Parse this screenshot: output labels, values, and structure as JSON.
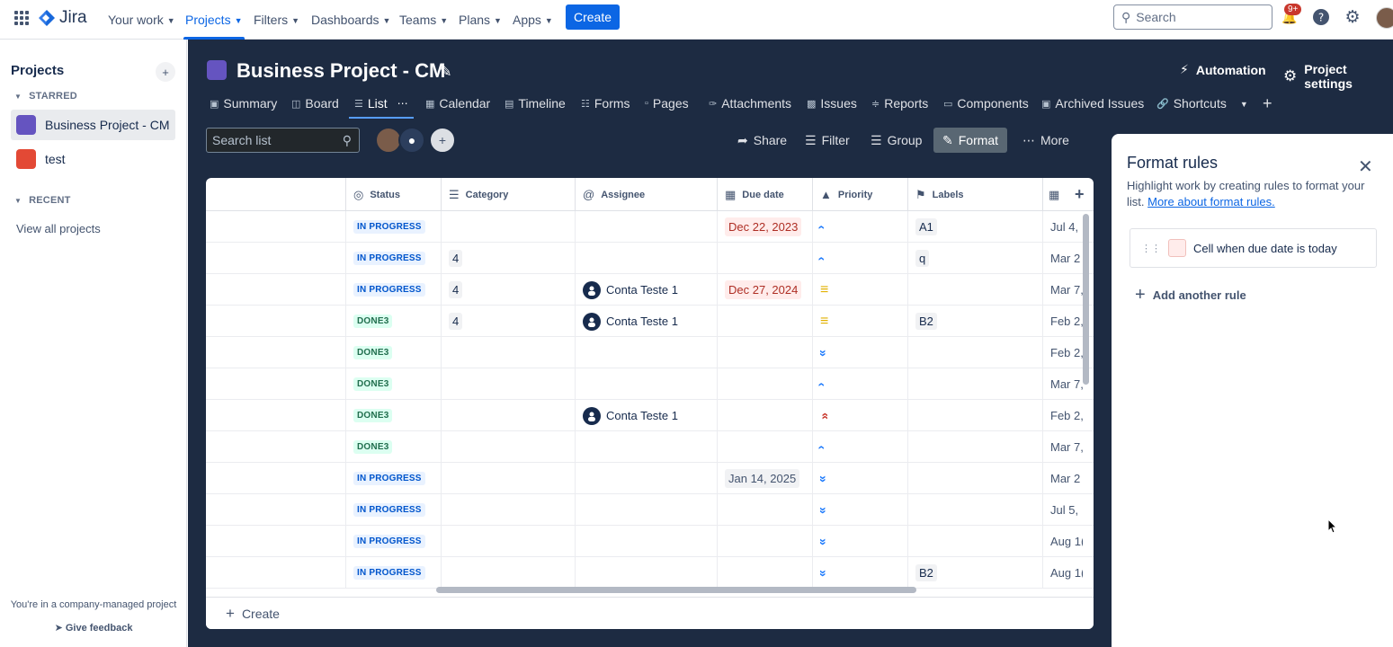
{
  "topnav": {
    "product": "Jira",
    "items": [
      {
        "label": "Your work",
        "active": false
      },
      {
        "label": "Projects",
        "active": true
      },
      {
        "label": "Filters",
        "active": false
      },
      {
        "label": "Dashboards",
        "active": false
      },
      {
        "label": "Teams",
        "active": false
      },
      {
        "label": "Plans",
        "active": false
      },
      {
        "label": "Apps",
        "active": false
      }
    ],
    "create_label": "Create",
    "search_placeholder": "Search",
    "notifications_badge": "9+"
  },
  "sidebar": {
    "title": "Projects",
    "starred_label": "STARRED",
    "projects": [
      {
        "name": "Business Project - CM",
        "active": true,
        "color": "#6554c0"
      },
      {
        "name": "test",
        "active": false,
        "color": "#e34935"
      }
    ],
    "recent_label": "RECENT",
    "view_all": "View all projects",
    "footer_note": "You're in a company-managed project",
    "feedback": "Give feedback"
  },
  "header": {
    "title": "Business Project - CM",
    "automation": "Automation",
    "settings": "Project settings"
  },
  "tabs": [
    {
      "label": "Summary",
      "icon": "summary-icon"
    },
    {
      "label": "Board",
      "icon": "board-icon"
    },
    {
      "label": "List",
      "icon": "list-icon",
      "active": true
    },
    {
      "label": "Calendar",
      "icon": "calendar-icon"
    },
    {
      "label": "Timeline",
      "icon": "timeline-icon"
    },
    {
      "label": "Forms",
      "icon": "forms-icon"
    },
    {
      "label": "Pages",
      "icon": "pages-icon"
    },
    {
      "label": "Attachments",
      "icon": "attachments-icon"
    },
    {
      "label": "Issues",
      "icon": "issues-icon"
    },
    {
      "label": "Reports",
      "icon": "reports-icon"
    },
    {
      "label": "Components",
      "icon": "components-icon"
    },
    {
      "label": "Archived Issues",
      "icon": "archive-icon"
    },
    {
      "label": "Shortcuts",
      "icon": "link-icon"
    }
  ],
  "toolbar": {
    "search_placeholder": "Search list",
    "share": "Share",
    "filter": "Filter",
    "group": "Group",
    "format": "Format",
    "more": "More"
  },
  "table": {
    "columns": [
      "Status",
      "Category",
      "Assignee",
      "Due date",
      "Priority",
      "Labels"
    ],
    "rows": [
      {
        "status": "IN PROGRESS",
        "status_type": "progress",
        "category": "",
        "assignee": "",
        "due": "Dec 22, 2023",
        "due_style": "red",
        "priority": "low",
        "label": "A1",
        "created": "Jul 4,"
      },
      {
        "status": "IN PROGRESS",
        "status_type": "progress",
        "category": "4",
        "assignee": "",
        "due": "",
        "due_style": "",
        "priority": "low",
        "label": "q",
        "created": "Mar 2"
      },
      {
        "status": "IN PROGRESS",
        "status_type": "progress",
        "category": "4",
        "assignee": "Conta Teste 1",
        "due": "Dec 27, 2024",
        "due_style": "red",
        "priority": "medium",
        "label": "",
        "created": "Mar 7,"
      },
      {
        "status": "DONE3",
        "status_type": "done",
        "category": "4",
        "assignee": "Conta Teste 1",
        "due": "",
        "due_style": "",
        "priority": "medium",
        "label": "B2",
        "created": "Feb 2,"
      },
      {
        "status": "DONE3",
        "status_type": "done",
        "category": "",
        "assignee": "",
        "due": "",
        "due_style": "",
        "priority": "lowest",
        "label": "",
        "created": "Feb 2,"
      },
      {
        "status": "DONE3",
        "status_type": "done",
        "category": "",
        "assignee": "",
        "due": "",
        "due_style": "",
        "priority": "low",
        "label": "",
        "created": "Mar 7,"
      },
      {
        "status": "DONE3",
        "status_type": "done",
        "category": "",
        "assignee": "Conta Teste 1",
        "due": "",
        "due_style": "",
        "priority": "highest",
        "label": "",
        "created": "Feb 2,"
      },
      {
        "status": "DONE3",
        "status_type": "done",
        "category": "",
        "assignee": "",
        "due": "",
        "due_style": "",
        "priority": "low",
        "label": "",
        "created": "Mar 7,"
      },
      {
        "status": "IN PROGRESS",
        "status_type": "progress",
        "category": "",
        "assignee": "",
        "due": "Jan 14, 2025",
        "due_style": "grey",
        "priority": "lowest",
        "label": "",
        "created": "Mar 2"
      },
      {
        "status": "IN PROGRESS",
        "status_type": "progress",
        "category": "",
        "assignee": "",
        "due": "",
        "due_style": "",
        "priority": "lowest",
        "label": "",
        "created": "Jul 5,"
      },
      {
        "status": "IN PROGRESS",
        "status_type": "progress",
        "category": "",
        "assignee": "",
        "due": "",
        "due_style": "",
        "priority": "lowest",
        "label": "",
        "created": "Aug 1("
      },
      {
        "status": "IN PROGRESS",
        "status_type": "progress",
        "category": "",
        "assignee": "",
        "due": "",
        "due_style": "",
        "priority": "lowest",
        "label": "B2",
        "created": "Aug 1("
      }
    ],
    "create_label": "Create"
  },
  "format_panel": {
    "title": "Format rules",
    "description": "Highlight work by creating rules to format your list.",
    "link": "More about format rules.",
    "rule": "Cell when due date is today",
    "add_rule": "Add another rule"
  },
  "colors": {
    "brand": "#0c66e4",
    "main_bg": "#1d2b42",
    "progress_text": "#0055cc",
    "done_text": "#216e4e",
    "overdue_bg": "#ffeceb"
  }
}
